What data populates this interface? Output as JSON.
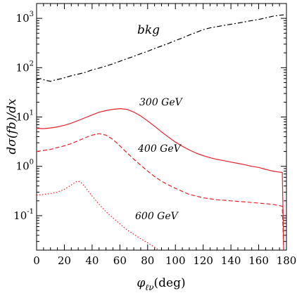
{
  "chart_data": {
    "type": "line",
    "title": "",
    "xlabel": "φ_{ℓν}(deg)",
    "ylabel": "dσ(fb)/dx",
    "xlim": [
      0,
      180
    ],
    "ylim": [
      0.02,
      2000
    ],
    "yscale": "log",
    "xticks": [
      0,
      20,
      40,
      60,
      80,
      100,
      120,
      140,
      160,
      180
    ],
    "yticks": [
      {
        "value": 1000,
        "base": "10",
        "exp": "3"
      },
      {
        "value": 100,
        "base": "10",
        "exp": "2"
      },
      {
        "value": 10,
        "base": "10",
        "exp": "1"
      },
      {
        "value": 1,
        "base": "10",
        "exp": "0"
      },
      {
        "value": 0.1,
        "base": "10",
        "exp": "-1"
      }
    ],
    "grid": false,
    "series": [
      {
        "name": "bkg",
        "color": "#000000",
        "style": "dash-dot",
        "x": [
          0,
          3,
          6,
          10,
          14,
          18,
          22,
          26,
          30,
          35,
          40,
          45,
          50,
          55,
          60,
          65,
          70,
          75,
          80,
          85,
          90,
          95,
          100,
          105,
          110,
          115,
          120,
          125,
          130,
          135,
          140,
          145,
          150,
          155,
          160,
          165,
          170,
          174,
          178
        ],
        "values": [
          57,
          60,
          56,
          53,
          57,
          60,
          65,
          70,
          74,
          80,
          90,
          98,
          108,
          120,
          135,
          152,
          170,
          192,
          215,
          245,
          275,
          310,
          355,
          400,
          460,
          520,
          590,
          640,
          680,
          720,
          760,
          800,
          850,
          900,
          950,
          1020,
          1100,
          1150,
          1180
        ]
      },
      {
        "name": "300 GeV",
        "color": "#e8202a",
        "style": "solid",
        "x": [
          0,
          5,
          10,
          15,
          20,
          25,
          30,
          35,
          40,
          45,
          50,
          55,
          60,
          65,
          70,
          75,
          80,
          85,
          90,
          95,
          100,
          105,
          110,
          115,
          120,
          125,
          130,
          135,
          140,
          145,
          150,
          155,
          160,
          165,
          170,
          174,
          177,
          178
        ],
        "values": [
          5.9,
          5.8,
          6.0,
          6.3,
          6.8,
          7.5,
          8.5,
          9.7,
          11.0,
          12.5,
          13.5,
          14.3,
          14.8,
          14.3,
          12.6,
          10.5,
          8.3,
          6.5,
          5.0,
          3.9,
          3.1,
          2.55,
          2.15,
          1.85,
          1.65,
          1.5,
          1.38,
          1.3,
          1.22,
          1.15,
          1.08,
          1.0,
          0.95,
          0.87,
          0.8,
          0.77,
          0.75,
          0.02
        ]
      },
      {
        "name": "400 GeV",
        "color": "#e8202a",
        "style": "dashed",
        "x": [
          0,
          5,
          10,
          15,
          20,
          25,
          30,
          35,
          40,
          45,
          50,
          55,
          60,
          65,
          70,
          75,
          80,
          85,
          90,
          95,
          100,
          105,
          110,
          115,
          120,
          125,
          130,
          135,
          140,
          145,
          150,
          155,
          160,
          165,
          170,
          175,
          177,
          178
        ],
        "values": [
          2.0,
          2.1,
          2.2,
          2.4,
          2.6,
          2.9,
          3.3,
          3.8,
          4.3,
          4.6,
          4.3,
          3.5,
          2.6,
          1.9,
          1.4,
          1.05,
          0.8,
          0.62,
          0.5,
          0.42,
          0.36,
          0.31,
          0.27,
          0.25,
          0.23,
          0.22,
          0.21,
          0.205,
          0.2,
          0.195,
          0.19,
          0.185,
          0.18,
          0.175,
          0.17,
          0.16,
          0.155,
          0.02
        ]
      },
      {
        "name": "600 GeV",
        "color": "#e8202a",
        "style": "dotted",
        "x": [
          0,
          5,
          10,
          15,
          20,
          25,
          28,
          30,
          32,
          35,
          40,
          45,
          50,
          55,
          60,
          65,
          70,
          75,
          80,
          85,
          88
        ],
        "values": [
          0.26,
          0.27,
          0.28,
          0.3,
          0.34,
          0.42,
          0.48,
          0.5,
          0.47,
          0.38,
          0.25,
          0.17,
          0.12,
          0.09,
          0.068,
          0.052,
          0.042,
          0.034,
          0.028,
          0.023,
          0.02
        ]
      }
    ]
  }
}
